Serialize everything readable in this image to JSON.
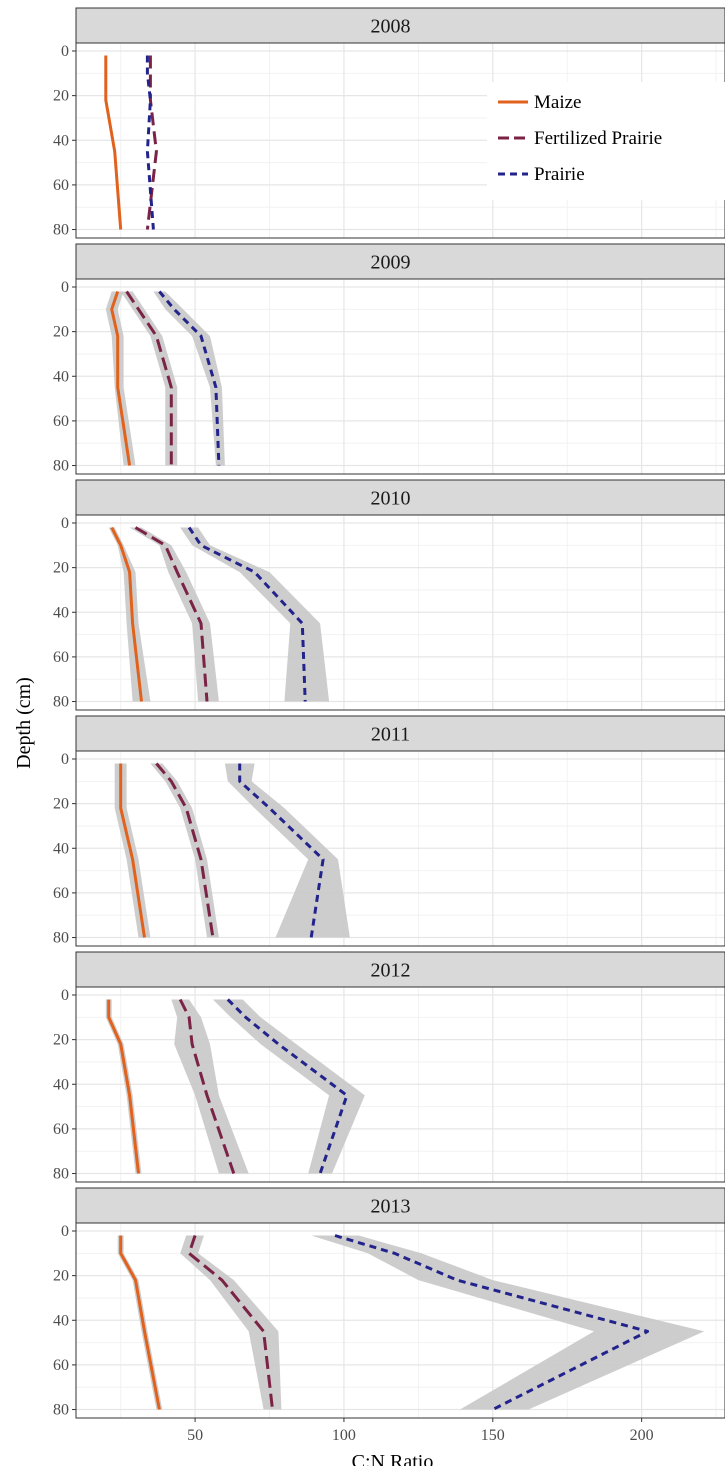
{
  "chart_data": {
    "type": "line",
    "xlabel": "C:N Ratio",
    "ylabel": "Depth (cm)",
    "xlim": [
      10,
      228
    ],
    "ylim": [
      0,
      82
    ],
    "x_ticks": [
      50,
      100,
      150,
      200
    ],
    "y_ticks": [
      0,
      20,
      40,
      60,
      80
    ],
    "grid": true,
    "y_reversed": true,
    "legend_position": "top-right (inside first panel)",
    "colors": {
      "Maize": "#e0621d",
      "Fertilized Prairie": "#7b2346",
      "Prairie": "#23238c",
      "ribbon": "#c8c8c8",
      "strip": "#d9d9d9"
    },
    "legend": [
      {
        "name": "Maize",
        "dash": "solid"
      },
      {
        "name": "Fertilized Prairie",
        "dash": "longdash"
      },
      {
        "name": "Prairie",
        "dash": "dashed"
      }
    ],
    "depths": [
      2,
      10,
      22,
      45,
      80
    ],
    "panels": [
      {
        "title": "2008",
        "series": [
          {
            "name": "Maize",
            "x": [
              20,
              20,
              20,
              23,
              25
            ]
          },
          {
            "name": "Fertilized Prairie",
            "x": [
              35,
              35,
              35,
              37,
              34
            ]
          },
          {
            "name": "Prairie",
            "x": [
              34,
              34,
              35,
              34,
              36
            ]
          }
        ]
      },
      {
        "title": "2009",
        "series": [
          {
            "name": "Maize",
            "x": [
              24,
              22,
              24,
              24,
              28
            ],
            "lo": [
              22,
              20,
              22,
              23,
              26
            ],
            "hi": [
              26,
              24,
              26,
              26,
              30
            ]
          },
          {
            "name": "Fertilized Prairie",
            "x": [
              27,
              31,
              37,
              42,
              42
            ],
            "lo": [
              25,
              29,
              35,
              40,
              40
            ],
            "hi": [
              29,
              33,
              39,
              44,
              44
            ]
          },
          {
            "name": "Prairie",
            "x": [
              38,
              43,
              52,
              57,
              58
            ],
            "lo": [
              36,
              40,
              49,
              55,
              57
            ],
            "hi": [
              40,
              46,
              55,
              59,
              60
            ]
          }
        ]
      },
      {
        "title": "2010",
        "series": [
          {
            "name": "Maize",
            "x": [
              22,
              25,
              28,
              29,
              32
            ],
            "lo": [
              21,
              24,
              26,
              27,
              29
            ],
            "hi": [
              23,
              26,
              30,
              31,
              35
            ]
          },
          {
            "name": "Fertilized Prairie",
            "x": [
              30,
              40,
              44,
              52,
              54
            ],
            "lo": [
              28,
              38,
              41,
              49,
              51
            ],
            "hi": [
              32,
              42,
              47,
              55,
              58
            ]
          },
          {
            "name": "Prairie",
            "x": [
              48,
              52,
              70,
              86,
              87
            ],
            "lo": [
              45,
              49,
              65,
              82,
              80
            ],
            "hi": [
              51,
              55,
              75,
              92,
              95
            ]
          }
        ]
      },
      {
        "title": "2011",
        "series": [
          {
            "name": "Maize",
            "x": [
              25,
              25,
              25,
              29,
              33
            ],
            "lo": [
              23,
              23,
              23,
              27,
              31
            ],
            "hi": [
              27,
              27,
              27,
              31,
              35
            ]
          },
          {
            "name": "Fertilized Prairie",
            "x": [
              37,
              42,
              47,
              52,
              56
            ],
            "lo": [
              35,
              40,
              45,
              50,
              54
            ],
            "hi": [
              39,
              44,
              49,
              54,
              58
            ]
          },
          {
            "name": "Prairie",
            "x": [
              65,
              65,
              75,
              93,
              89
            ],
            "lo": [
              60,
              61,
              70,
              88,
              77
            ],
            "hi": [
              70,
              69,
              80,
              98,
              102
            ]
          }
        ]
      },
      {
        "title": "2012",
        "series": [
          {
            "name": "Maize",
            "x": [
              21,
              21,
              25,
              28,
              31
            ],
            "lo": [
              20,
              20,
              24,
              27,
              30
            ],
            "hi": [
              22,
              22,
              26,
              29,
              32
            ]
          },
          {
            "name": "Fertilized Prairie",
            "x": [
              45,
              48,
              49,
              54,
              63
            ],
            "lo": [
              42,
              44,
              43,
              50,
              58
            ],
            "hi": [
              48,
              52,
              55,
              58,
              68
            ]
          },
          {
            "name": "Prairie",
            "x": [
              61,
              67,
              78,
              101,
              92
            ],
            "lo": [
              56,
              62,
              72,
              95,
              88
            ],
            "hi": [
              66,
              72,
              84,
              107,
              96
            ]
          }
        ]
      },
      {
        "title": "2013",
        "series": [
          {
            "name": "Maize",
            "x": [
              25,
              25,
              30,
              33,
              38
            ],
            "lo": [
              24,
              24,
              29,
              32,
              37
            ],
            "hi": [
              26,
              26,
              31,
              34,
              39
            ]
          },
          {
            "name": "Fertilized Prairie",
            "x": [
              50,
              48,
              59,
              73,
              76
            ],
            "lo": [
              47,
              45,
              55,
              68,
              73
            ],
            "hi": [
              53,
              51,
              63,
              78,
              79
            ]
          },
          {
            "name": "Prairie",
            "x": [
              97,
              117,
              138,
              202,
              150
            ],
            "lo": [
              89,
              108,
              125,
              184,
              139
            ],
            "hi": [
              105,
              126,
              150,
              221,
              162
            ]
          }
        ]
      }
    ]
  }
}
